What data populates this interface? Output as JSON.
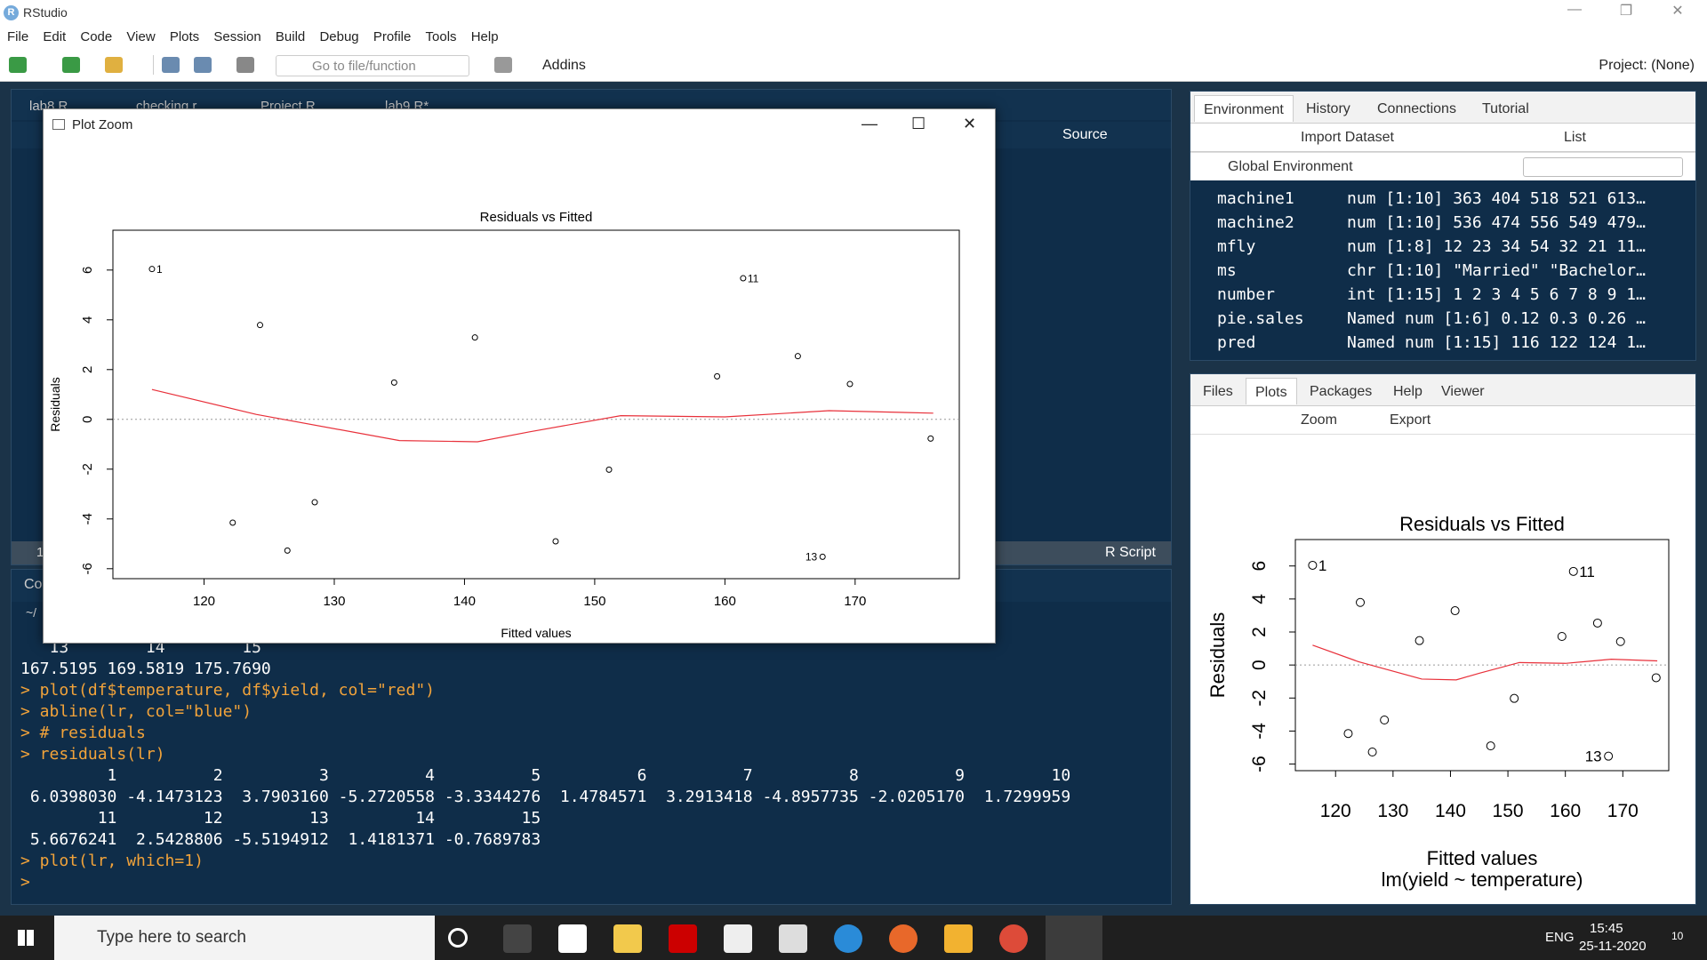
{
  "window": {
    "title": "RStudio",
    "rlogo": "R",
    "min": "—",
    "max": "❐",
    "close": "✕"
  },
  "menu": [
    "File",
    "Edit",
    "Code",
    "View",
    "Plots",
    "Session",
    "Build",
    "Debug",
    "Profile",
    "Tools",
    "Help"
  ],
  "toolbar": {
    "goto": "Go to file/function",
    "addins": "Addins",
    "project": "Project: (None)"
  },
  "source_tabs": [
    "lab8.R",
    "checking.r",
    "Project.R",
    "lab9.R*"
  ],
  "source_bar": {
    "source_label": "Source",
    "status_num": "1",
    "script_type": "R Script"
  },
  "console_tab": {
    "label": "Co",
    "path": "~/"
  },
  "env": {
    "tabs": [
      "Environment",
      "History",
      "Connections",
      "Tutorial"
    ],
    "import": "Import Dataset",
    "list": "List",
    "scope": "Global Environment",
    "rows": [
      {
        "name": "machine1",
        "val": "num [1:10] 363 404 518 521 613…"
      },
      {
        "name": "machine2",
        "val": "num [1:10] 536 474 556 549 479…"
      },
      {
        "name": "mfly",
        "val": "num [1:8] 12 23 34 54 32 21 11…"
      },
      {
        "name": "ms",
        "val": "chr [1:10] \"Married\" \"Bachelor…"
      },
      {
        "name": "number",
        "val": "int [1:15] 1 2 3 4 5 6 7 8 9 1…"
      },
      {
        "name": "pie.sales",
        "val": "Named num [1:6] 0.12 0.3 0.26 …"
      },
      {
        "name": "pred",
        "val": "Named num [1:15] 116 122 124 1…"
      }
    ]
  },
  "files": {
    "tabs": [
      "Files",
      "Plots",
      "Packages",
      "Help",
      "Viewer"
    ],
    "zoom": "Zoom",
    "export": "Export"
  },
  "console": {
    "lines": [
      {
        "t": "   13        14        15 ",
        "c": "out"
      },
      {
        "t": "167.5195 169.5819 175.7690",
        "c": "out"
      },
      {
        "t": "> plot(df$temperature, df$yield, col=\"red\")",
        "c": "cmd"
      },
      {
        "t": "> abline(lr, col=\"blue\")",
        "c": "cmd"
      },
      {
        "t": "> # residuals",
        "c": "cmd"
      },
      {
        "t": "> residuals(lr)",
        "c": "cmd"
      },
      {
        "t": "         1          2          3          4          5          6          7          8          9         10 ",
        "c": "out"
      },
      {
        "t": " 6.0398030 -4.1473123  3.7903160 -5.2720558 -3.3344276  1.4784571  3.2913418 -4.8957735 -2.0205170  1.7299959 ",
        "c": "out"
      },
      {
        "t": "        11         12         13         14         15 ",
        "c": "out"
      },
      {
        "t": " 5.6676241  2.5428806 -5.5194912  1.4181371 -0.7689783 ",
        "c": "out"
      },
      {
        "t": "> plot(lr, which=1)",
        "c": "cmd"
      },
      {
        "t": "> ",
        "c": "cmd"
      }
    ]
  },
  "plotzoom": {
    "title": "Plot Zoom"
  },
  "chart_data": {
    "type": "scatter",
    "title": "Residuals vs Fitted",
    "xlabel": "Fitted values",
    "subtitle": "lm(yield ~ temperature)",
    "ylabel": "Residuals",
    "xlim": [
      113,
      178
    ],
    "ylim": [
      -6.4,
      7.6
    ],
    "xticks": [
      120,
      130,
      140,
      150,
      160,
      170
    ],
    "yticks": [
      -6,
      -4,
      -2,
      0,
      2,
      4,
      6
    ],
    "points": [
      {
        "x": 116.0,
        "y": 6.04,
        "label": "1"
      },
      {
        "x": 122.2,
        "y": -4.15,
        "label": ""
      },
      {
        "x": 124.3,
        "y": 3.79,
        "label": ""
      },
      {
        "x": 126.4,
        "y": -5.27,
        "label": ""
      },
      {
        "x": 128.5,
        "y": -3.33,
        "label": ""
      },
      {
        "x": 134.6,
        "y": 1.48,
        "label": ""
      },
      {
        "x": 140.8,
        "y": 3.29,
        "label": ""
      },
      {
        "x": 147.0,
        "y": -4.9,
        "label": ""
      },
      {
        "x": 151.1,
        "y": -2.02,
        "label": ""
      },
      {
        "x": 159.4,
        "y": 1.73,
        "label": ""
      },
      {
        "x": 161.4,
        "y": 5.67,
        "label": "11"
      },
      {
        "x": 165.6,
        "y": 2.54,
        "label": ""
      },
      {
        "x": 167.5,
        "y": -5.52,
        "label": "13"
      },
      {
        "x": 169.6,
        "y": 1.42,
        "label": ""
      },
      {
        "x": 175.8,
        "y": -0.77,
        "label": ""
      }
    ],
    "smooth": [
      [
        116.0,
        1.2
      ],
      [
        124,
        0.2
      ],
      [
        135,
        -0.85
      ],
      [
        141,
        -0.9
      ],
      [
        145,
        -0.5
      ],
      [
        152,
        0.15
      ],
      [
        160,
        0.1
      ],
      [
        168,
        0.35
      ],
      [
        176,
        0.25
      ]
    ],
    "colors": {
      "smooth": "#e8303a",
      "zero": "#999999"
    }
  },
  "taskbar": {
    "search": "Type here to search",
    "lang": "ENG",
    "time": "15:45",
    "date": "25-11-2020",
    "notif": "10"
  }
}
